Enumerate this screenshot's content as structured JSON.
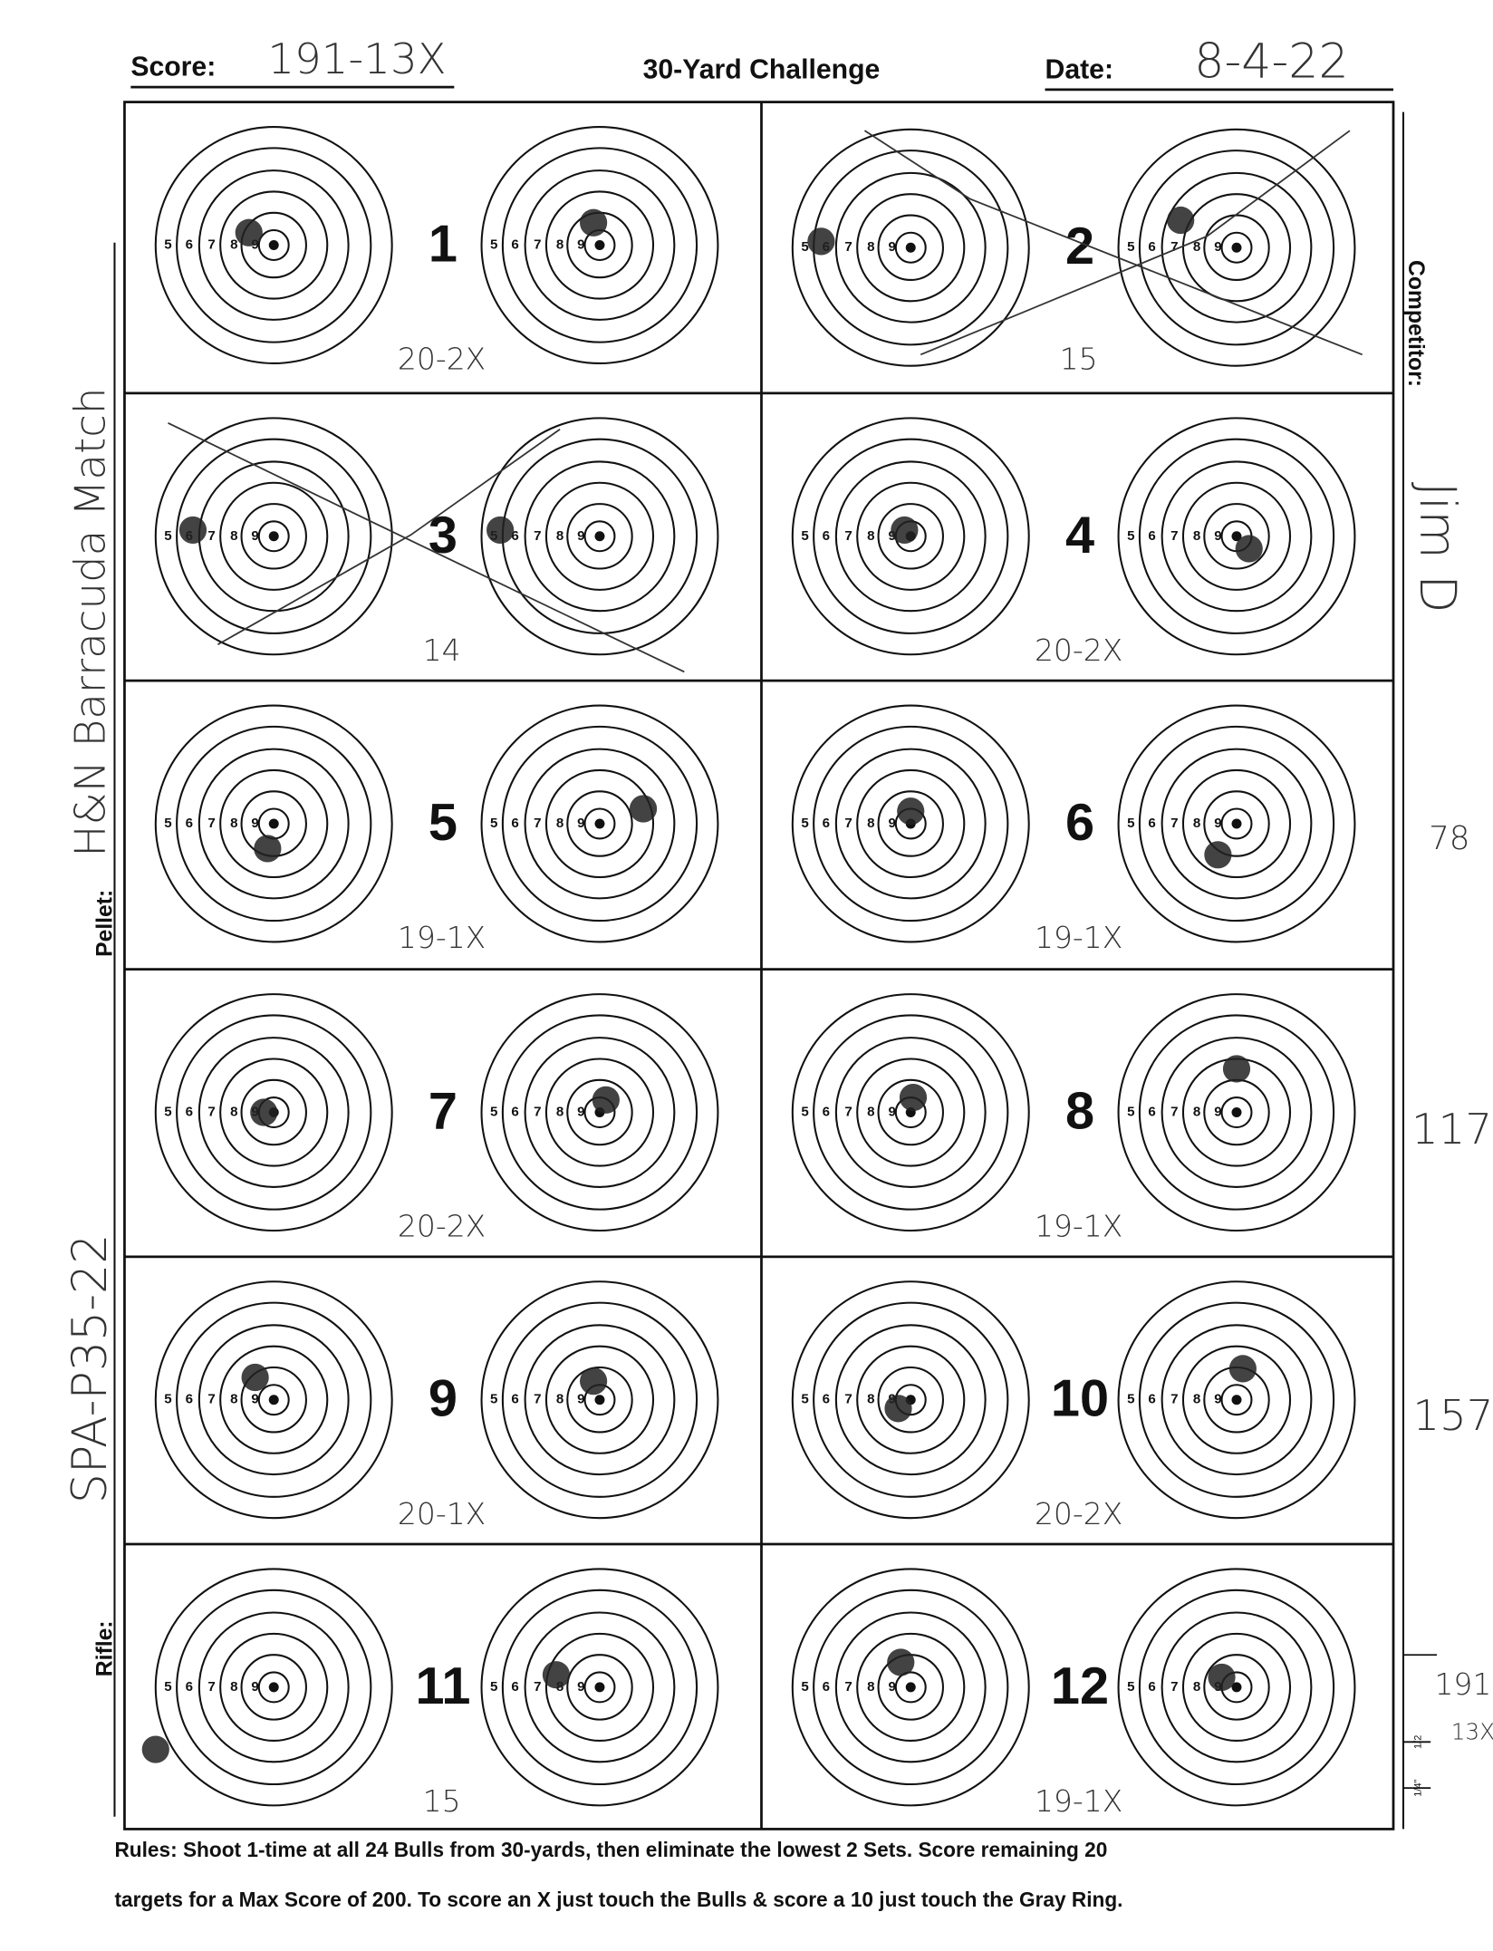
{
  "header": {
    "score_label": "Score:",
    "score": "191-13X",
    "title": "30-Yard Challenge",
    "date_label": "Date:",
    "date": "8-4-22"
  },
  "ring_labels": [
    "5",
    "6",
    "7",
    "8",
    "9"
  ],
  "sets": [
    {
      "number": "1",
      "score": "20-2X"
    },
    {
      "number": "2",
      "score": "15"
    },
    {
      "number": "3",
      "score": "14"
    },
    {
      "number": "4",
      "score": "20-2X"
    },
    {
      "number": "5",
      "score": "19-1X"
    },
    {
      "number": "6",
      "score": "19-1X"
    },
    {
      "number": "7",
      "score": "20-2X"
    },
    {
      "number": "8",
      "score": "19-1X"
    },
    {
      "number": "9",
      "score": "20-1X"
    },
    {
      "number": "10",
      "score": "20-2X"
    },
    {
      "number": "11",
      "score": "15"
    },
    {
      "number": "12",
      "score": "19-1X"
    }
  ],
  "side": {
    "competitor_label": "Competitor:",
    "competitor": "Jim D",
    "pellet_label": "Pellet:",
    "pellet": "H&N Barracuda Match",
    "rifle_label": "Rifle:",
    "rifle": "SPA-P35-22"
  },
  "running_totals": [
    "78",
    "117",
    "157",
    "191",
    "13X"
  ],
  "ruler_labels": [
    "1/2",
    "1/4\""
  ],
  "rules": [
    "Rules: Shoot 1-time at all 24 Bulls from 30-yards, then eliminate the lowest 2 Sets. Score remaining 20",
    "targets for a Max Score of 200. To score an X just touch the Bulls & score a 10 just touch the Gray Ring."
  ]
}
